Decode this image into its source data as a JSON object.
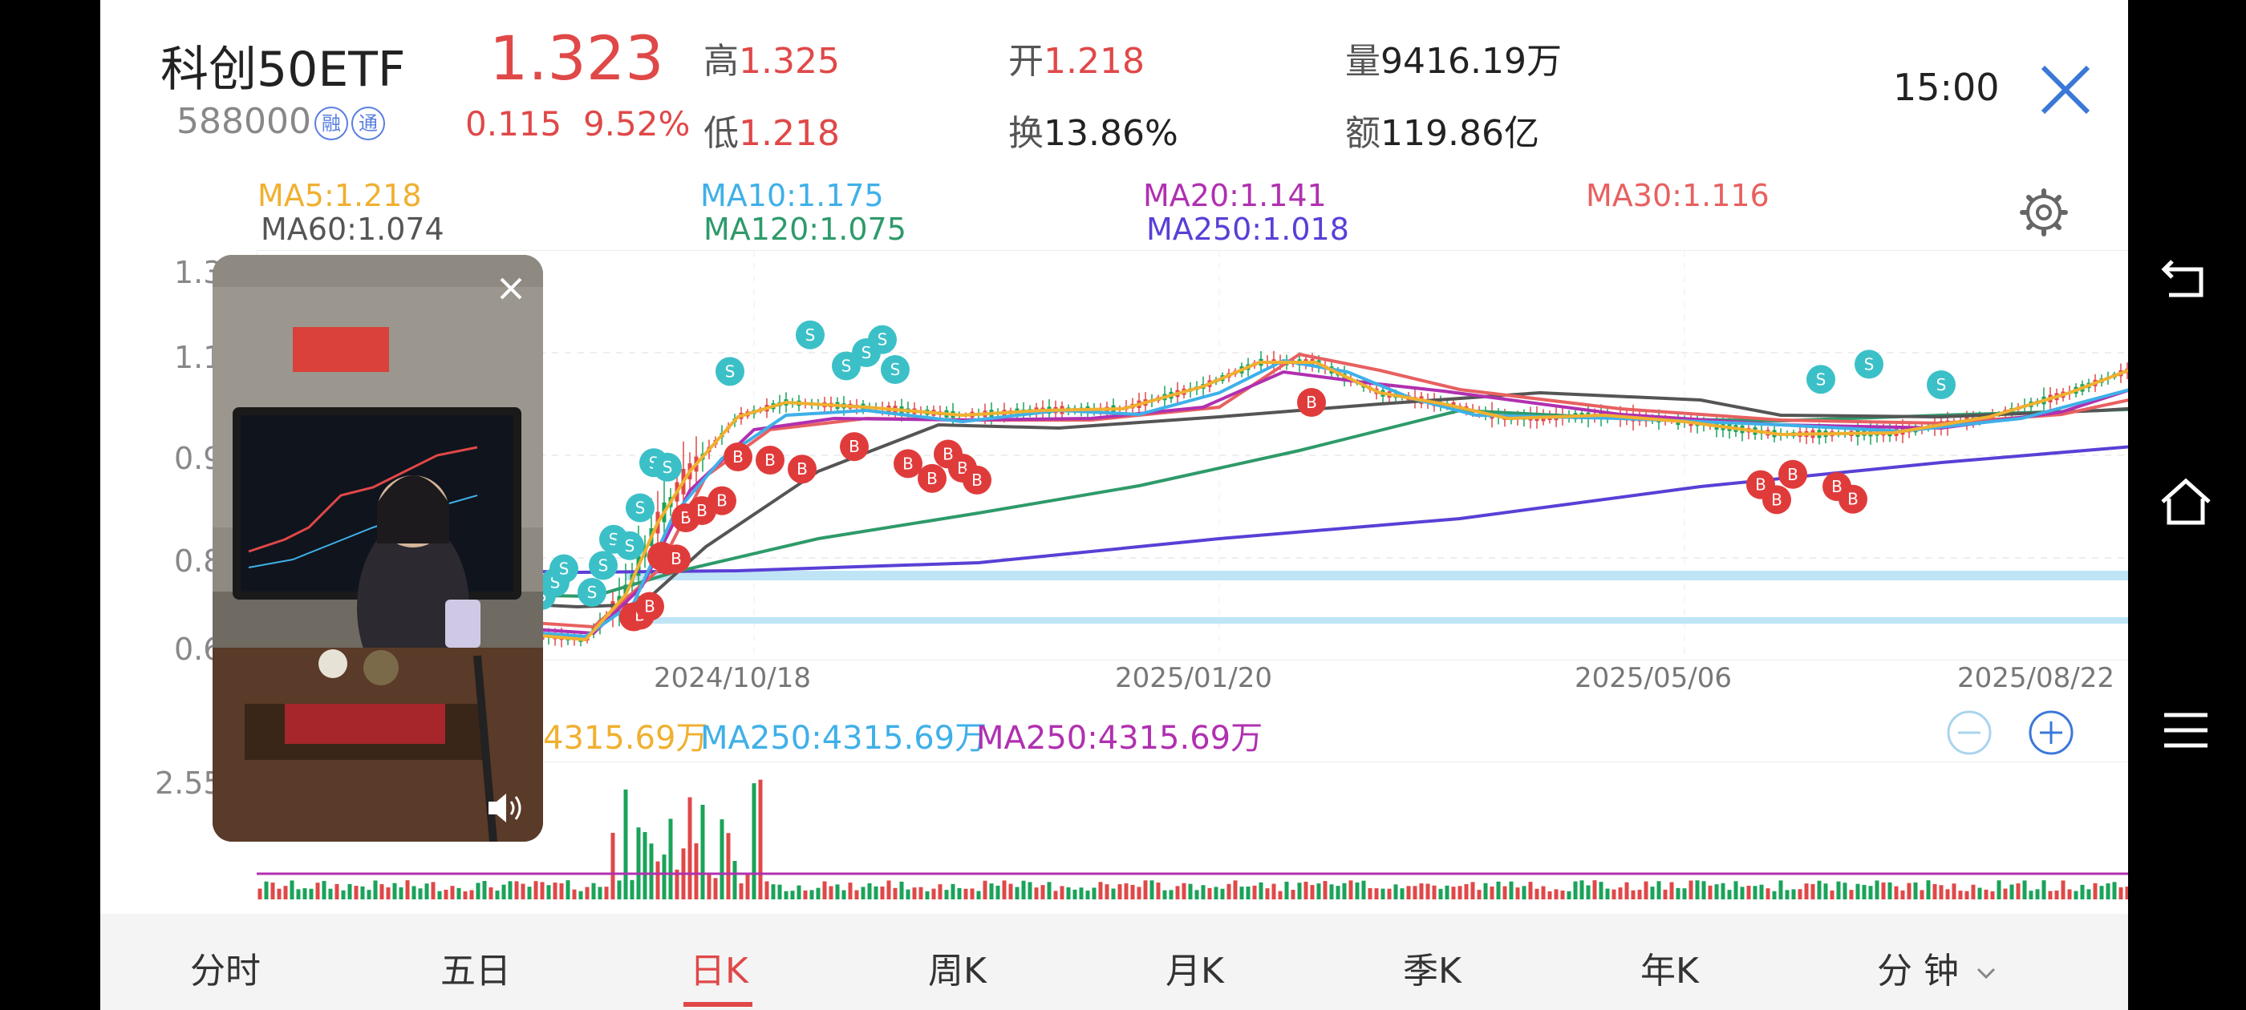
{
  "header": {
    "name": "科创50ETF",
    "code": "588000",
    "badge_rong": "融",
    "badge_tong": "通",
    "price": "1.323",
    "change": "0.115",
    "change_pct": "9.52%",
    "high_label": "高",
    "high": "1.325",
    "low_label": "低",
    "low": "1.218",
    "open_label": "开",
    "open": "1.218",
    "turnover_label": "换",
    "turnover": "13.86%",
    "volume_label": "量",
    "volume": "9416.19万",
    "amount_label": "额",
    "amount": "119.86亿",
    "time": "15:00"
  },
  "ma": {
    "ma5": "MA5:1.218",
    "ma10": "MA10:1.175",
    "ma20": "MA20:1.141",
    "ma30": "MA30:1.116",
    "ma60": "MA60:1.074",
    "ma120": "MA120:1.075",
    "ma250": "MA250:1.018"
  },
  "axis": {
    "y1": "1.3",
    "y2": "1.1",
    "y3": "0.9",
    "y4": "0.8",
    "y5": "0.6",
    "vol_y": "2.55"
  },
  "dates": [
    "2024/10/18",
    "2025/01/20",
    "2025/05/06",
    "2025/08/22"
  ],
  "volume_ma": [
    "4315.69万",
    "MA250:4315.69万",
    "MA250:4315.69万"
  ],
  "tabs": [
    "分时",
    "五日",
    "日K",
    "周K",
    "月K",
    "季K",
    "年K",
    "分 钟"
  ],
  "active_tab": "日K",
  "colors": {
    "up": "#e04848",
    "down": "#1aa35a",
    "ma5": "#f0b030",
    "ma10": "#3fb0e8",
    "ma20": "#b030b0",
    "ma30": "#e86060",
    "ma60": "#555555",
    "ma120": "#2e9a6a",
    "ma250": "#5a3fd6",
    "signal_s": "#3cc0c8",
    "signal_b": "#e03b3b"
  }
}
